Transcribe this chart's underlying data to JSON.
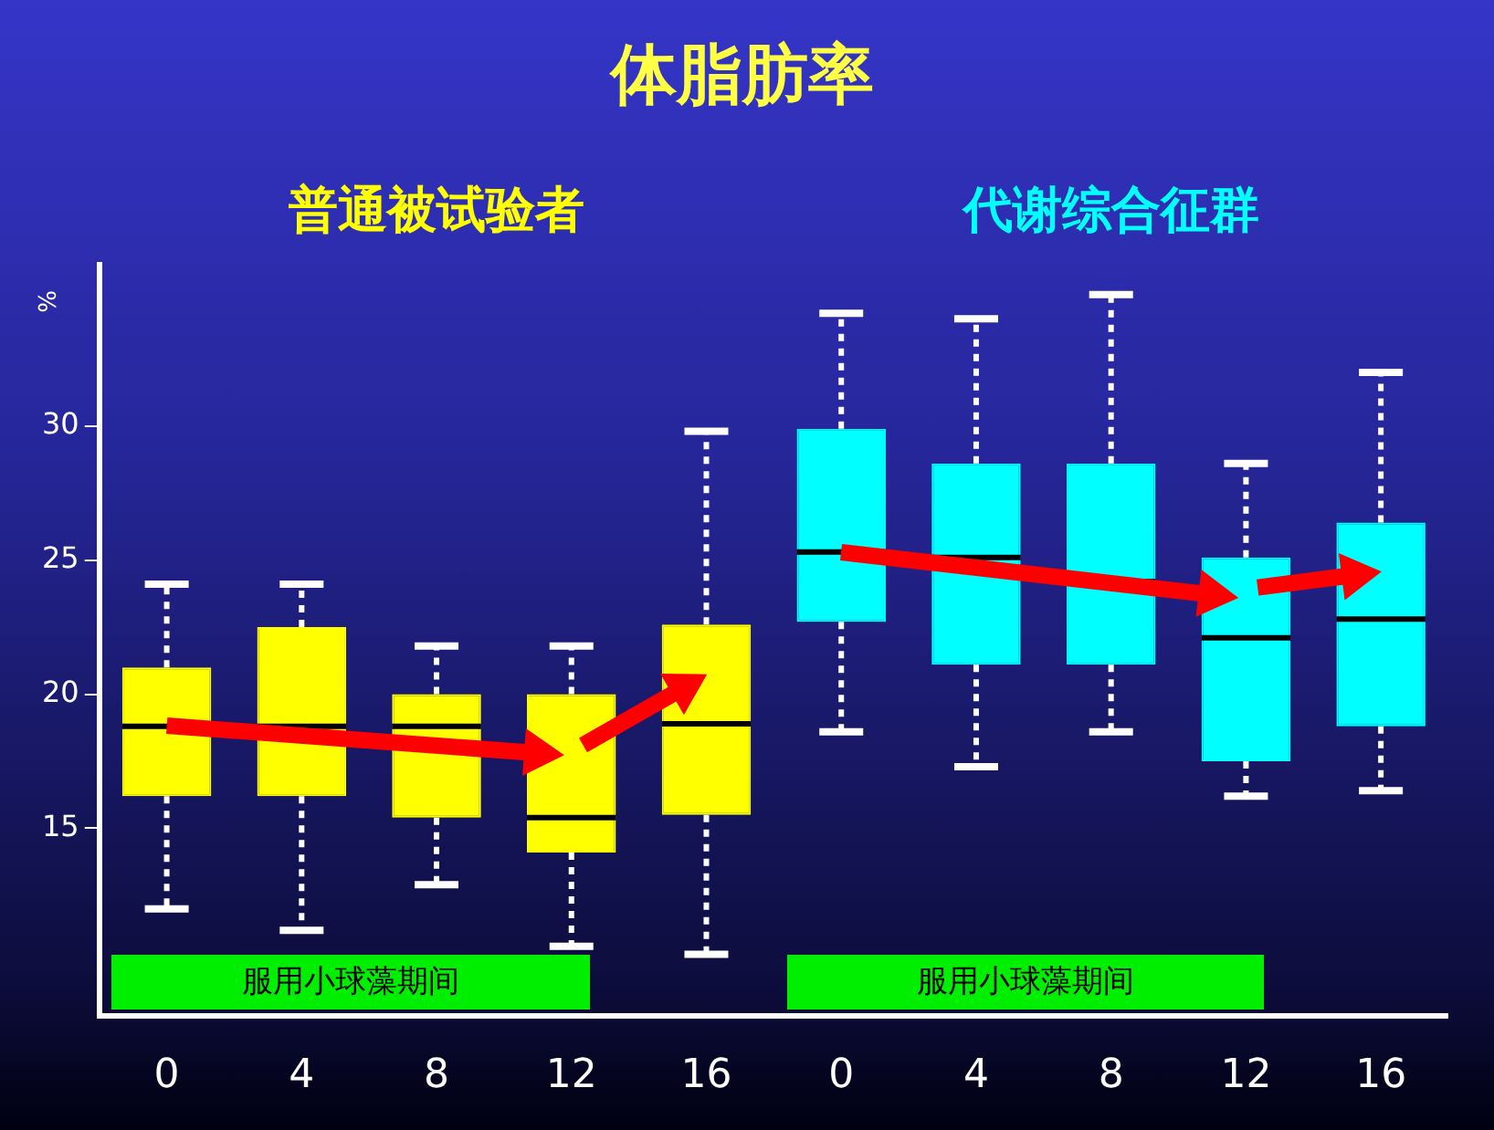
{
  "chart_data": {
    "type": "box",
    "title": "体脂肪率",
    "ylabel": "%",
    "categories": [
      "0",
      "4",
      "8",
      "12",
      "16",
      "0",
      "4",
      "8",
      "12",
      "16"
    ],
    "series": [
      {
        "name": "普通被试验者",
        "color": "#ffff00",
        "boxes": [
          {
            "low": 12.0,
            "q1": 16.2,
            "median": 18.8,
            "q3": 21.0,
            "high": 24.1
          },
          {
            "low": 11.2,
            "q1": 16.2,
            "median": 18.8,
            "q3": 22.5,
            "high": 24.1
          },
          {
            "low": 12.9,
            "q1": 15.4,
            "median": 18.8,
            "q3": 20.0,
            "high": 21.8
          },
          {
            "low": 10.6,
            "q1": 14.1,
            "median": 15.4,
            "q3": 20.0,
            "high": 21.8
          },
          {
            "low": 10.3,
            "q1": 15.5,
            "median": 18.9,
            "q3": 22.6,
            "high": 29.8
          },
          null,
          null,
          null,
          null,
          null
        ]
      },
      {
        "name": "代谢综合征群",
        "color": "#00ffff",
        "boxes": [
          null,
          null,
          null,
          null,
          null,
          {
            "low": 18.6,
            "q1": 22.7,
            "median": 25.3,
            "q3": 29.9,
            "high": 34.2
          },
          {
            "low": 17.3,
            "q1": 21.1,
            "median": 25.1,
            "q3": 28.6,
            "high": 34.0
          },
          {
            "low": 18.6,
            "q1": 21.1,
            "median": 24.2,
            "q3": 28.6,
            "high": 34.9
          },
          {
            "low": 16.2,
            "q1": 17.5,
            "median": 22.1,
            "q3": 25.1,
            "high": 28.6
          },
          {
            "low": 16.4,
            "q1": 18.8,
            "median": 22.8,
            "q3": 26.4,
            "high": 32.0
          }
        ]
      }
    ],
    "annotations": [
      "服用小球藻期间",
      "服用小球藻期间"
    ],
    "ylim": [
      8,
      36
    ],
    "yticks": [
      15,
      20,
      25,
      30
    ],
    "grid": false
  }
}
